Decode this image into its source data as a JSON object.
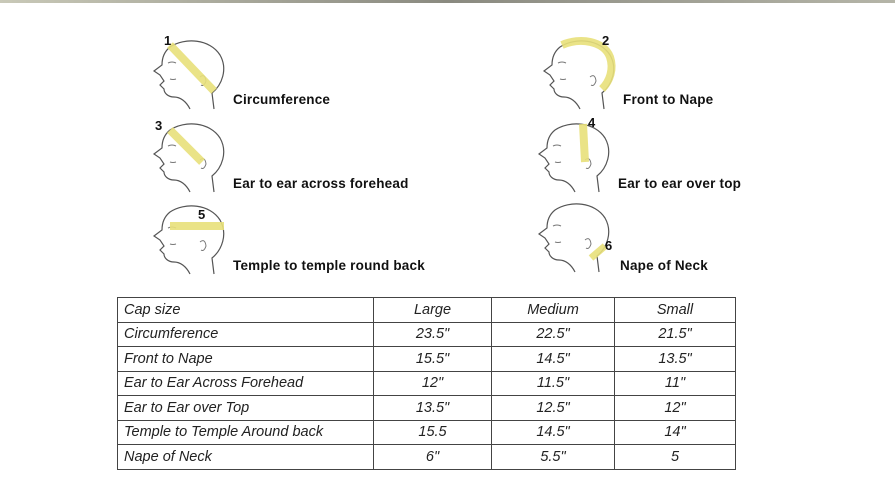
{
  "measurements": [
    {
      "number": "1",
      "label": "Circumference"
    },
    {
      "number": "2",
      "label": "Front to Nape"
    },
    {
      "number": "3",
      "label": "Ear to ear across forehead"
    },
    {
      "number": "4",
      "label": "Ear to ear over top"
    },
    {
      "number": "5",
      "label": "Temple to temple round back"
    },
    {
      "number": "6",
      "label": "Nape of Neck"
    }
  ],
  "tape_color": "#e8e07a",
  "table": {
    "headers": [
      "Cap size",
      "Large",
      "Medium",
      "Small"
    ],
    "rows": [
      [
        "Circumference",
        "23.5\"",
        "22.5\"",
        "21.5\""
      ],
      [
        "Front to Nape",
        "15.5\"",
        "14.5\"",
        "13.5\""
      ],
      [
        "Ear to Ear Across Forehead",
        "12\"",
        "11.5\"",
        "11\""
      ],
      [
        "Ear to Ear over Top",
        "13.5\"",
        "12.5\"",
        "12\""
      ],
      [
        "Temple to Temple Around back",
        "15.5",
        "14.5\"",
        "14\""
      ],
      [
        "Nape of Neck",
        "6\"",
        "5.5\"",
        "5"
      ]
    ]
  }
}
